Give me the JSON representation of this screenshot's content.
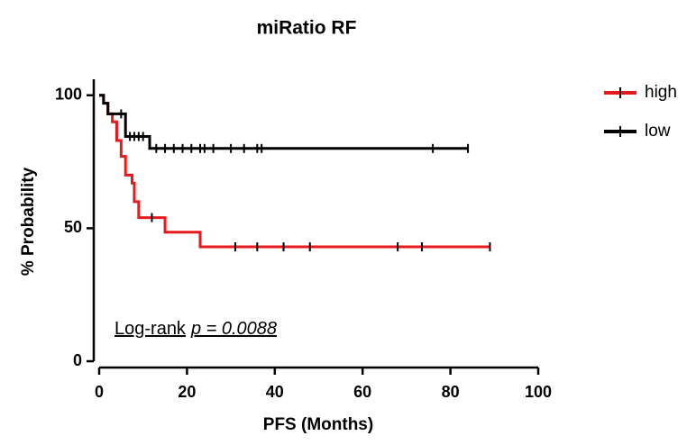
{
  "chart_data": {
    "type": "km",
    "title": "miRatio RF",
    "x_label": "PFS (Months)",
    "y_label": "% Probability",
    "annotation": {
      "text": "Log-rank",
      "stat": "p = 0.0088"
    },
    "xlim": [
      0,
      100
    ],
    "xticks": [
      0,
      20,
      40,
      60,
      80,
      100
    ],
    "ylim": [
      0,
      105
    ],
    "yticks": [
      0,
      50,
      100
    ],
    "legend": "top-right",
    "series": [
      {
        "name": "high",
        "color": "#e8191b",
        "x": [
          0,
          1,
          2,
          3,
          4,
          5,
          6,
          7.5,
          8,
          9,
          15,
          23,
          89
        ],
        "values": [
          100,
          97,
          93,
          90,
          83,
          77,
          70,
          67,
          60,
          54,
          48.5,
          43,
          43
        ],
        "censored_x": [
          12,
          31,
          36,
          42,
          48,
          68,
          73.5,
          89
        ],
        "censored_values": [
          54,
          43,
          43,
          43,
          43,
          43,
          43,
          43
        ]
      },
      {
        "name": "low",
        "color": "#000000",
        "x": [
          0,
          1,
          2,
          6,
          11.5,
          84
        ],
        "values": [
          100,
          97,
          93,
          84.5,
          80,
          80
        ],
        "censored_x": [
          5,
          7,
          8,
          9,
          10,
          13,
          15,
          17,
          19,
          21,
          23,
          24,
          26,
          30,
          33,
          36,
          37,
          76,
          84
        ],
        "censored_values": [
          93,
          84.5,
          84.5,
          84.5,
          84.5,
          80,
          80,
          80,
          80,
          80,
          80,
          80,
          80,
          80,
          80,
          80,
          80,
          80,
          80
        ]
      }
    ]
  }
}
